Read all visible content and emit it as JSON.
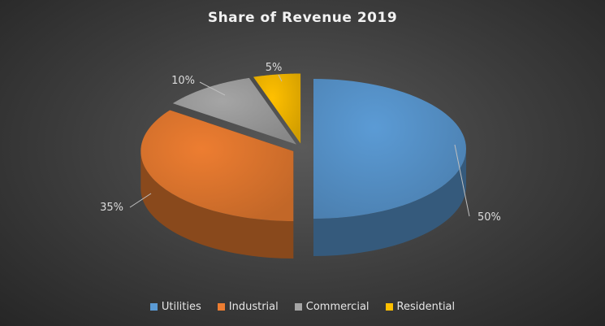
{
  "chart_data": {
    "type": "pie",
    "title": "Share of Revenue 2019",
    "categories": [
      "Utilities",
      "Industrial",
      "Commercial",
      "Residential"
    ],
    "values": [
      50,
      35,
      10,
      5
    ],
    "data_labels": [
      "50%",
      "35%",
      "10%",
      "5%"
    ],
    "colors": [
      "#5b9bd5",
      "#ed7d31",
      "#a5a5a5",
      "#ffc000"
    ],
    "legend_position": "bottom",
    "style": "3d-exploded"
  }
}
